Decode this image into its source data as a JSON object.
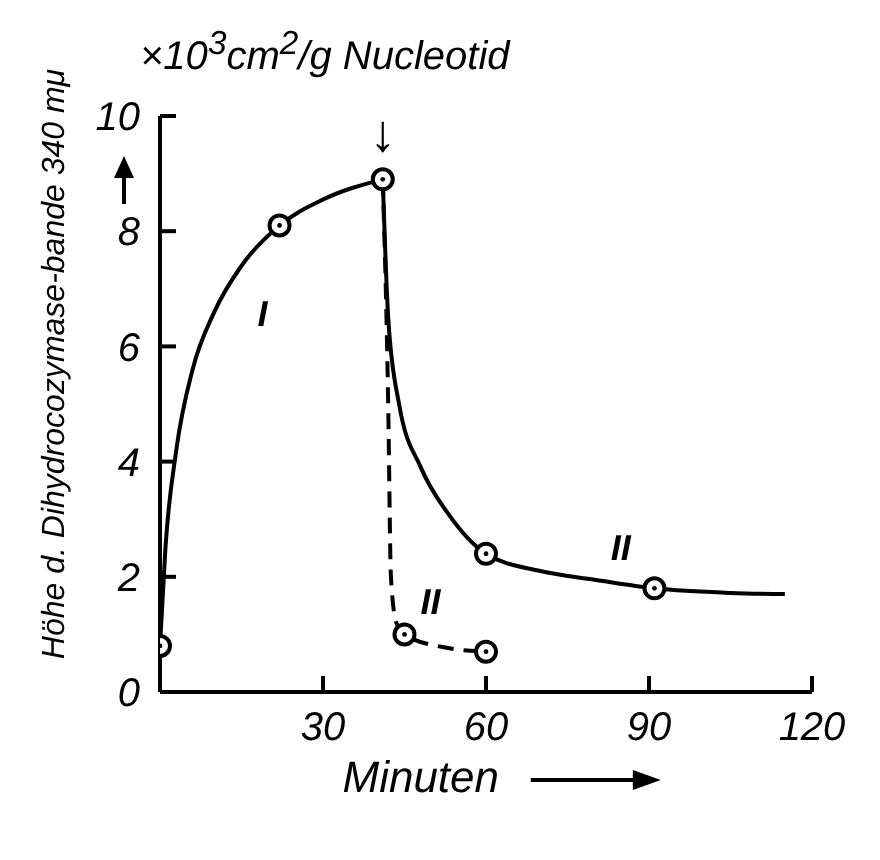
{
  "chart_data": {
    "type": "line",
    "ylabel": "Höhe d. Dihydrocozymase-bande 340 mμ",
    "xlabel": "Minuten",
    "annotations": [
      "×10$^{3}$cm$^{2}$/g Nucleotid",
      {
        "text": "↓",
        "x": 41,
        "y": 8.9
      }
    ],
    "xlim": [
      0,
      120
    ],
    "xticks": [
      30,
      60,
      90,
      120
    ],
    "ylim": [
      0,
      10
    ],
    "yticks": [
      0,
      2,
      4,
      6,
      8,
      10
    ],
    "grid": false,
    "legend": false,
    "series": [
      {
        "name": "I",
        "color": "#000000",
        "line_style": "solid",
        "marker": "none",
        "x": [
          0,
          1,
          3,
          6,
          10,
          15,
          22,
          30,
          41
        ],
        "values": [
          0.8,
          2.5,
          4.2,
          5.6,
          6.6,
          7.4,
          8.1,
          8.55,
          8.9
        ]
      },
      {
        "name": "II",
        "color": "#000000",
        "line_style": "solid",
        "marker": "none",
        "x": [
          41,
          42,
          44,
          48,
          53,
          60,
          70,
          80,
          91,
          105,
          115
        ],
        "values": [
          8.9,
          6.5,
          5.0,
          3.9,
          3.1,
          2.4,
          2.1,
          1.95,
          1.8,
          1.72,
          1.7
        ]
      },
      {
        "name": "II",
        "color": "#000000",
        "line_style": "dashed",
        "marker": "none",
        "x": [
          41,
          42,
          42.5,
          43.5,
          45,
          52,
          60
        ],
        "values": [
          8.9,
          5.0,
          2.0,
          1.2,
          1.0,
          0.78,
          0.7
        ]
      },
      {
        "type": "scatter",
        "color": "#000000",
        "marker": "circle",
        "x": [
          0,
          22,
          41,
          60,
          91,
          45,
          60
        ],
        "values": [
          0.8,
          8.1,
          8.9,
          2.4,
          1.8,
          1.0,
          0.7
        ]
      }
    ]
  }
}
